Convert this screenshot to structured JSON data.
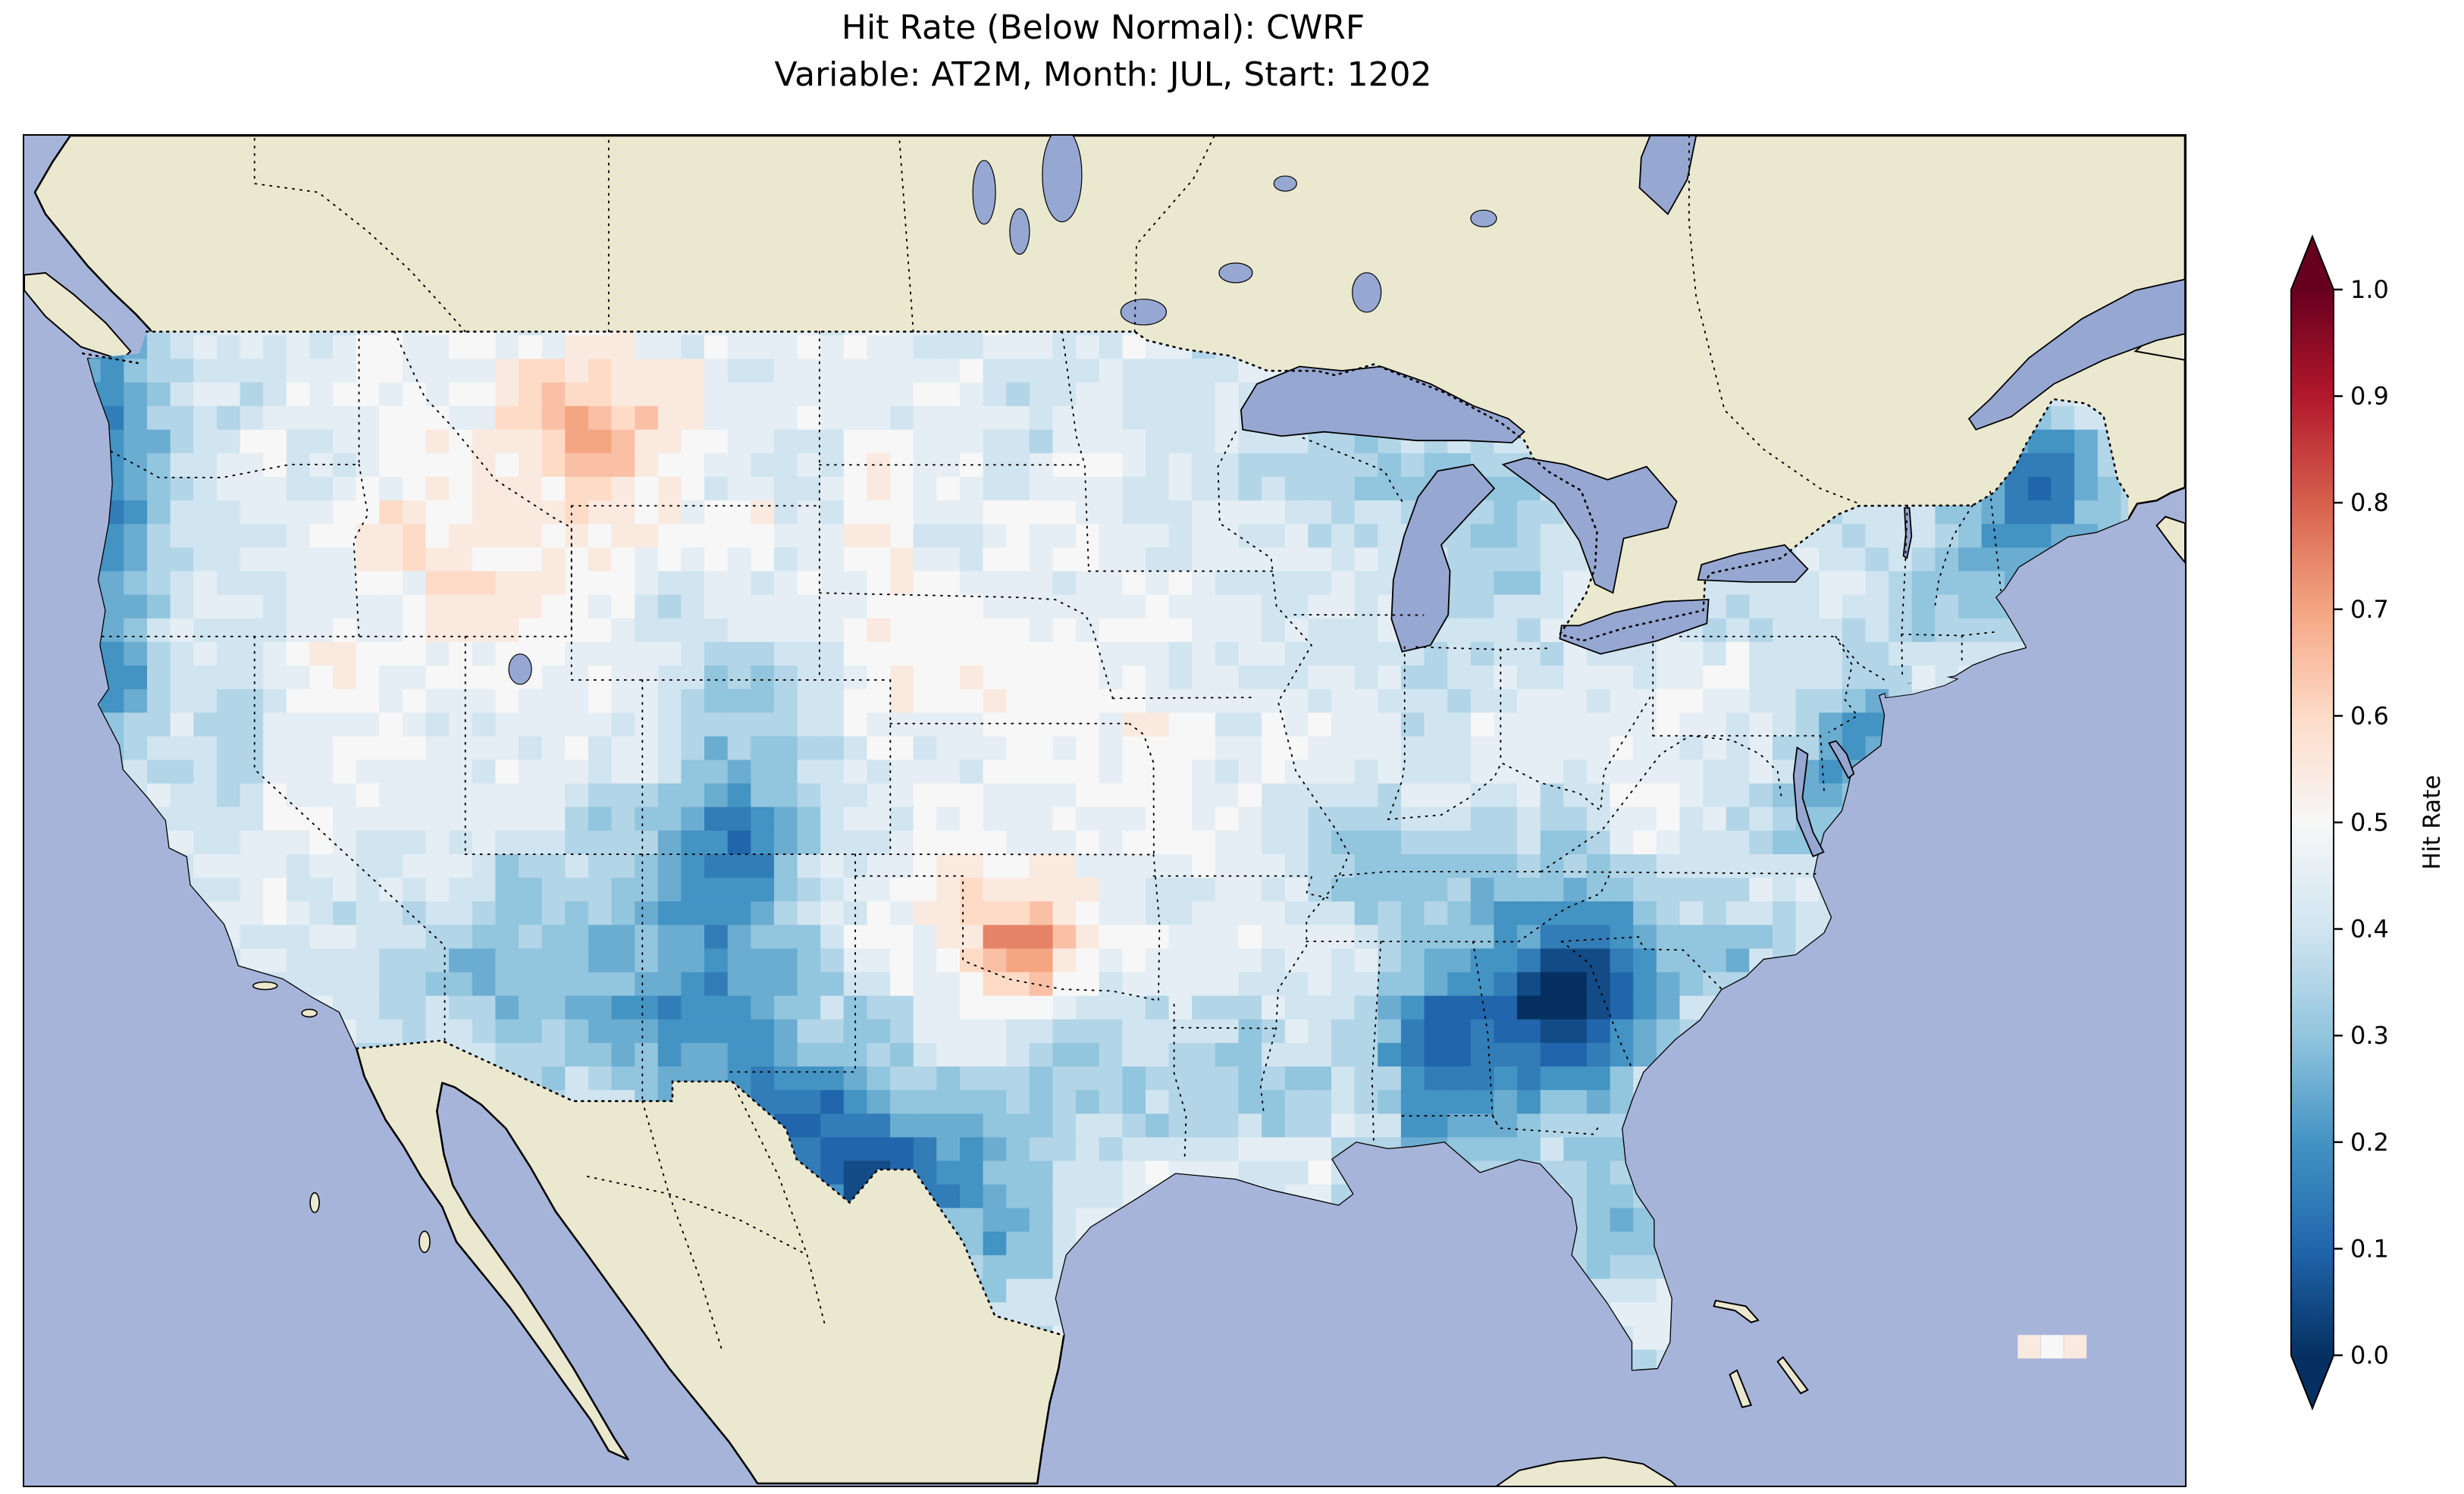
{
  "title": {
    "line1": "Hit Rate (Below Normal): CWRF",
    "line2": "Variable: AT2M, Month: JUL, Start: 1202"
  },
  "colorbar": {
    "label": "Hit Rate",
    "ticks": [
      "1.0",
      "0.9",
      "0.8",
      "0.7",
      "0.6",
      "0.5",
      "0.4",
      "0.3",
      "0.2",
      "0.1",
      "0.0"
    ],
    "tick_values": [
      1.0,
      0.9,
      0.8,
      0.7,
      0.6,
      0.5,
      0.4,
      0.3,
      0.2,
      0.1,
      0.0
    ],
    "vmin": 0.0,
    "vmax": 1.0,
    "extend": "both"
  },
  "map": {
    "ocean_color": "#a7b4da",
    "land_color": "#ebe8d0",
    "lake_color": "#96a7d2",
    "coastline_color": "#000000",
    "border_style": "dotted"
  },
  "chart_data": {
    "type": "heatmap",
    "title": "Hit Rate (Below Normal): CWRF",
    "subtitle": "Variable: AT2M, Month: JUL, Start: 1202",
    "metric": "Hit Rate (Below Normal)",
    "model": "CWRF",
    "variable": "AT2M",
    "month": "JUL",
    "start": "1202",
    "value_range": [
      0,
      1
    ],
    "colormap": "RdBu_r",
    "colormap_anchors": [
      "#053061",
      "#2166ac",
      "#4393c3",
      "#92c5de",
      "#d1e5f0",
      "#f7f7f7",
      "#fddbc7",
      "#f4a582",
      "#d6604d",
      "#b2182b",
      "#67001f"
    ],
    "map_extent": {
      "lon": [
        -126.5,
        -65.5
      ],
      "lat": [
        22.5,
        53.5
      ]
    },
    "grid": {
      "lon_min": -125.0,
      "lon_max": -66.0,
      "lat_min": 24.0,
      "lat_max": 50.0,
      "nx": 90,
      "ny": 48,
      "base_value": 0.42,
      "quantize_step": 0.05
    },
    "regional_features": [
      {
        "lon": -124.2,
        "lat": 47.0,
        "sigma_lon": 1.0,
        "sigma_lat": 2.3,
        "delta": -0.28,
        "note": "Pacific Northwest coast dark blue"
      },
      {
        "lon": -123.9,
        "lat": 41.5,
        "sigma_lon": 1.0,
        "sigma_lat": 2.0,
        "delta": -0.18,
        "note": "northern California coast"
      },
      {
        "lon": -120.8,
        "lat": 39.2,
        "sigma_lon": 1.0,
        "sigma_lat": 1.3,
        "delta": -0.1,
        "note": "Sierra Nevada"
      },
      {
        "lon": -113.6,
        "lat": 34.2,
        "sigma_lon": 1.3,
        "sigma_lat": 1.3,
        "delta": -0.14,
        "note": "western Arizona blue spot"
      },
      {
        "lon": -110.8,
        "lat": 46.6,
        "sigma_lon": 3.2,
        "sigma_lat": 2.0,
        "delta": 0.15,
        "note": "Montana pink region"
      },
      {
        "lon": -110.6,
        "lat": 46.9,
        "sigma_lon": 0.9,
        "sigma_lat": 0.7,
        "delta": 0.14,
        "note": "central Montana orange core"
      },
      {
        "lon": -114.8,
        "lat": 43.8,
        "sigma_lon": 2.2,
        "sigma_lat": 1.7,
        "delta": 0.1,
        "note": "Idaho pale pink"
      },
      {
        "lon": -117.0,
        "lat": 39.8,
        "sigma_lon": 2.6,
        "sigma_lat": 2.0,
        "delta": 0.08,
        "note": "Nevada pale pink"
      },
      {
        "lon": -106.6,
        "lat": 38.6,
        "sigma_lon": 1.1,
        "sigma_lat": 2.2,
        "delta": -0.16,
        "note": "Colorado Rockies blue streak"
      },
      {
        "lon": -108.3,
        "lat": 34.3,
        "sigma_lon": 2.0,
        "sigma_lat": 2.4,
        "delta": -0.18,
        "note": "New Mexico / Four Corners blue"
      },
      {
        "lon": -105.5,
        "lat": 32.0,
        "sigma_lon": 1.6,
        "sigma_lat": 1.6,
        "delta": -0.14,
        "note": "southern New Mexico"
      },
      {
        "lon": -103.4,
        "lat": 29.6,
        "sigma_lon": 1.9,
        "sigma_lat": 1.6,
        "delta": -0.26,
        "note": "Big Bend / west Texas dark blue"
      },
      {
        "lon": -100.0,
        "lat": 28.6,
        "sigma_lon": 2.2,
        "sigma_lat": 1.9,
        "delta": -0.14,
        "note": "south Texas blue"
      },
      {
        "lon": -98.2,
        "lat": 34.9,
        "sigma_lon": 1.4,
        "sigma_lat": 1.0,
        "delta": 0.24,
        "note": "Oklahoma orange patch"
      },
      {
        "lon": -99.0,
        "lat": 36.3,
        "sigma_lon": 2.6,
        "sigma_lat": 1.6,
        "delta": 0.08,
        "note": "southern Kansas pale pink"
      },
      {
        "lon": -100.0,
        "lat": 41.0,
        "sigma_lon": 3.0,
        "sigma_lat": 1.8,
        "delta": 0.07,
        "note": "Nebraska pale"
      },
      {
        "lon": -100.8,
        "lat": 45.3,
        "sigma_lon": 2.6,
        "sigma_lat": 1.6,
        "delta": 0.05,
        "note": "Dakotas pale"
      },
      {
        "lon": -83.6,
        "lat": 33.2,
        "sigma_lon": 2.0,
        "sigma_lat": 1.8,
        "delta": -0.3,
        "note": "Georgia dark blue blob"
      },
      {
        "lon": -83.4,
        "lat": 33.8,
        "sigma_lon": 0.8,
        "sigma_lat": 0.7,
        "delta": -0.12,
        "note": "Georgia darkest core"
      },
      {
        "lon": -86.9,
        "lat": 32.3,
        "sigma_lon": 1.2,
        "sigma_lat": 1.9,
        "delta": -0.2,
        "note": "Alabama blue"
      },
      {
        "lon": -81.5,
        "lat": 34.3,
        "sigma_lon": 1.2,
        "sigma_lat": 1.1,
        "delta": -0.16,
        "note": "South Carolina"
      },
      {
        "lon": -85.9,
        "lat": 36.3,
        "sigma_lon": 1.8,
        "sigma_lat": 1.0,
        "delta": -0.1,
        "note": "Tennessee patch"
      },
      {
        "lon": -88.5,
        "lat": 36.8,
        "sigma_lon": 1.3,
        "sigma_lat": 0.9,
        "delta": -0.08,
        "note": "western Kentucky"
      },
      {
        "lon": -69.5,
        "lat": 45.3,
        "sigma_lon": 1.2,
        "sigma_lat": 1.5,
        "delta": -0.26,
        "note": "Maine dark blue"
      },
      {
        "lon": -71.6,
        "lat": 43.6,
        "sigma_lon": 1.4,
        "sigma_lat": 1.3,
        "delta": -0.14,
        "note": "New Hampshire / Vermont"
      },
      {
        "lon": -74.4,
        "lat": 40.2,
        "sigma_lon": 0.9,
        "sigma_lat": 1.4,
        "delta": -0.18,
        "note": "New Jersey coast"
      },
      {
        "lon": -76.2,
        "lat": 38.6,
        "sigma_lon": 0.8,
        "sigma_lat": 1.1,
        "delta": -0.14,
        "note": "Chesapeake region"
      },
      {
        "lon": -77.6,
        "lat": 35.1,
        "sigma_lon": 1.4,
        "sigma_lat": 1.0,
        "delta": -0.1,
        "note": "eastern North Carolina"
      },
      {
        "lon": -84.9,
        "lat": 44.6,
        "sigma_lon": 1.4,
        "sigma_lat": 1.3,
        "delta": -0.14,
        "note": "Michigan blue"
      },
      {
        "lon": -89.5,
        "lat": 45.2,
        "sigma_lon": 2.2,
        "sigma_lat": 1.5,
        "delta": -0.08,
        "note": "Wisconsin light blue"
      },
      {
        "lon": -81.6,
        "lat": 28.8,
        "sigma_lon": 1.0,
        "sigma_lat": 1.8,
        "delta": -0.1,
        "note": "Florida peninsula"
      },
      {
        "lon": -91.7,
        "lat": 31.6,
        "sigma_lon": 1.6,
        "sigma_lat": 1.4,
        "delta": -0.07,
        "note": "Louisiana / Mississippi"
      },
      {
        "lon": -93.5,
        "lat": 39.8,
        "sigma_lon": 2.4,
        "sigma_lat": 1.6,
        "delta": 0.06,
        "note": "Missouri / Iowa pale"
      },
      {
        "lon": -80.9,
        "lat": 39.5,
        "sigma_lon": 1.9,
        "sigma_lat": 1.4,
        "delta": 0.05,
        "note": "Ohio Valley pale"
      },
      {
        "lon": -96.8,
        "lat": 32.4,
        "sigma_lon": 1.5,
        "sigma_lat": 1.2,
        "delta": -0.08,
        "note": "north Texas"
      },
      {
        "lon": -105.9,
        "lat": 36.9,
        "sigma_lon": 1.2,
        "sigma_lat": 1.0,
        "delta": -0.12,
        "note": "northern New Mexico"
      }
    ],
    "stray_cells": [
      {
        "lon": -69.9,
        "lat": 25.7,
        "value": 0.55
      },
      {
        "lon": -69.25,
        "lat": 25.7,
        "value": 0.5
      },
      {
        "lon": -68.6,
        "lat": 25.7,
        "value": 0.55
      }
    ]
  }
}
